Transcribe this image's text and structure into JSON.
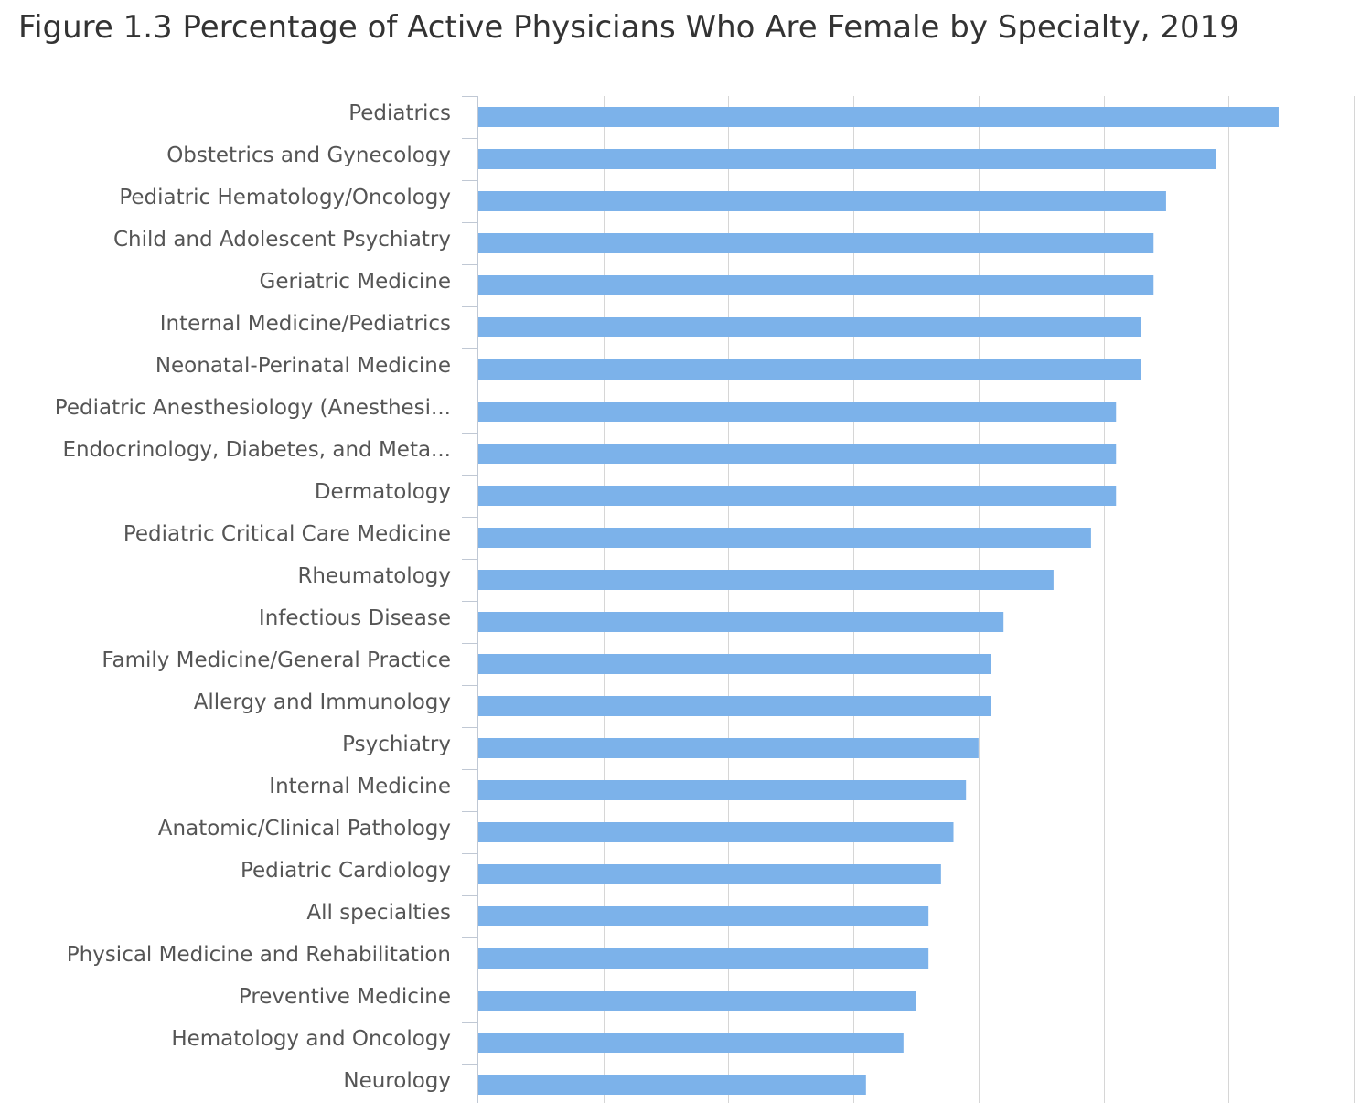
{
  "title": "Figure 1.3 Percentage of Active Physicians Who Are Female by Specialty, 2019",
  "colors": {
    "bar": "#7cb2ea",
    "grid": "#d6d6d6",
    "axis": "#c0c8d4",
    "label": "#555555",
    "title": "#333333"
  },
  "chart_data": {
    "type": "bar",
    "orientation": "horizontal",
    "title": "Figure 1.3 Percentage of Active Physicians Who Are Female by Specialty, 2019",
    "xlabel": "",
    "ylabel": "",
    "xlim": [
      0,
      70
    ],
    "grid": true,
    "categories": [
      "Pediatrics",
      "Obstetrics and Gynecology",
      "Pediatric Hematology/Oncology",
      "Child and Adolescent Psychiatry",
      "Geriatric Medicine",
      "Internal Medicine/Pediatrics",
      "Neonatal-Perinatal Medicine",
      "Pediatric Anesthesiology (Anesthesi...",
      "Endocrinology, Diabetes, and Meta...",
      "Dermatology",
      "Pediatric Critical Care Medicine",
      "Rheumatology",
      "Infectious Disease",
      "Family Medicine/General Practice",
      "Allergy and Immunology",
      "Psychiatry",
      "Internal Medicine",
      "Anatomic/Clinical Pathology",
      "Pediatric Cardiology",
      "All specialties",
      "Physical Medicine and Rehabilitation",
      "Preventive Medicine",
      "Hematology and Oncology",
      "Neurology"
    ],
    "values": [
      64,
      59,
      55,
      54,
      54,
      53,
      53,
      51,
      51,
      51,
      49,
      46,
      42,
      41,
      41,
      40,
      39,
      38,
      37,
      36,
      36,
      35,
      34,
      31
    ]
  }
}
